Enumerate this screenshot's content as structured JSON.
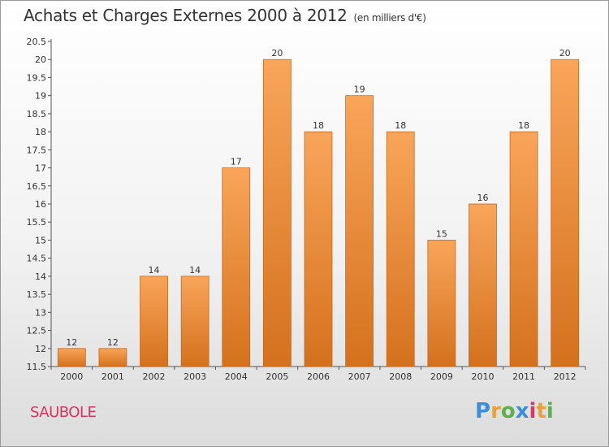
{
  "header": {
    "title": "Achats et Charges Externes 2000 à 2012",
    "unit": "(en milliers d'€)"
  },
  "commune": "SAUBOLE",
  "logo": {
    "letters": [
      "P",
      "r",
      "o",
      "x",
      "i",
      "t",
      "i"
    ],
    "colors": [
      "#3a8fd6",
      "#e9a13a",
      "#5db04f",
      "#3a8fd6",
      "#d23a6b",
      "#e9a13a",
      "#5db04f"
    ]
  },
  "colors": {
    "bar_light": "#f9a55a",
    "bar_dark": "#d4711d",
    "bar_edge": "#c56a1f",
    "title": "#d2365e"
  },
  "chart_data": {
    "type": "bar",
    "categories": [
      "2000",
      "2001",
      "2002",
      "2003",
      "2004",
      "2005",
      "2006",
      "2007",
      "2008",
      "2009",
      "2010",
      "2011",
      "2012"
    ],
    "values": [
      12,
      12,
      14,
      14,
      17,
      20,
      18,
      19,
      18,
      15,
      16,
      18,
      20
    ],
    "data_labels": [
      "12",
      "12",
      "14",
      "14",
      "17",
      "20",
      "18",
      "19",
      "18",
      "15",
      "16",
      "18",
      "20"
    ],
    "ylim": [
      11.5,
      20.5
    ],
    "yticks": [
      "11.5",
      "12",
      "12.5",
      "13",
      "13.5",
      "14",
      "14.5",
      "15",
      "15.5",
      "16",
      "16.5",
      "17",
      "17.5",
      "18",
      "18.5",
      "19",
      "19.5",
      "20",
      "20.5"
    ],
    "grid": false
  }
}
